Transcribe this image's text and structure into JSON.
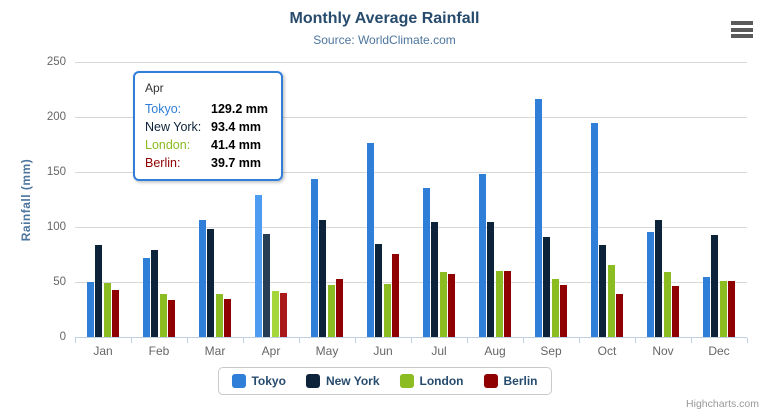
{
  "chart": {
    "title": "Monthly Average Rainfall",
    "subtitle": "Source: WorldClimate.com",
    "y_axis_title": "Rainfall (mm)",
    "credits": "Highcharts.com"
  },
  "colors": {
    "title": "#274b6d",
    "subtitle": "#4d759e",
    "axis_label": "#666666",
    "axis_line": "#c0d0e0",
    "gridline": "#d8d8d8",
    "legend_text": "#274b6d",
    "credits": "#999999",
    "menu_icon": "#5a5a5a"
  },
  "tooltip": {
    "header": "Apr",
    "border_color": "#2f7ed8",
    "rows": [
      {
        "label": "Tokyo:",
        "value": "129.2 mm",
        "color": "#2f7ed8"
      },
      {
        "label": "New York:",
        "value": "93.4 mm",
        "color": "#0d233a"
      },
      {
        "label": "London:",
        "value": "41.4 mm",
        "color": "#8bbc21"
      },
      {
        "label": "Berlin:",
        "value": "39.7 mm",
        "color": "#910000"
      }
    ]
  },
  "chart_data": {
    "type": "bar",
    "title": "Monthly Average Rainfall",
    "subtitle": "Source: WorldClimate.com",
    "xlabel": "",
    "ylabel": "Rainfall (mm)",
    "ylim": [
      0,
      250
    ],
    "y_ticks": [
      0,
      50,
      100,
      150,
      200,
      250
    ],
    "grid": true,
    "legend_position": "bottom-center",
    "highlighted_category": "Apr",
    "categories": [
      "Jan",
      "Feb",
      "Mar",
      "Apr",
      "May",
      "Jun",
      "Jul",
      "Aug",
      "Sep",
      "Oct",
      "Nov",
      "Dec"
    ],
    "series": [
      {
        "name": "Tokyo",
        "color": "#2f7ed8",
        "hover_color": "#4e9cf2",
        "values": [
          49.9,
          71.5,
          106.4,
          129.2,
          144.0,
          176.0,
          135.6,
          148.5,
          216.4,
          194.1,
          95.6,
          54.4
        ]
      },
      {
        "name": "New York",
        "color": "#0d233a",
        "hover_color": "#273d54",
        "values": [
          83.6,
          78.8,
          98.5,
          93.4,
          106.0,
          84.5,
          105.0,
          104.3,
          91.2,
          83.5,
          106.6,
          92.3
        ]
      },
      {
        "name": "London",
        "color": "#8bbc21",
        "hover_color": "#a5d63b",
        "values": [
          48.9,
          38.8,
          39.3,
          41.4,
          47.0,
          48.3,
          59.0,
          59.6,
          52.4,
          65.2,
          59.3,
          51.2
        ]
      },
      {
        "name": "Berlin",
        "color": "#910000",
        "hover_color": "#ab1a1a",
        "values": [
          42.4,
          33.2,
          34.5,
          39.7,
          52.6,
          75.5,
          57.4,
          60.4,
          47.6,
          39.1,
          46.8,
          51.1
        ]
      }
    ]
  }
}
